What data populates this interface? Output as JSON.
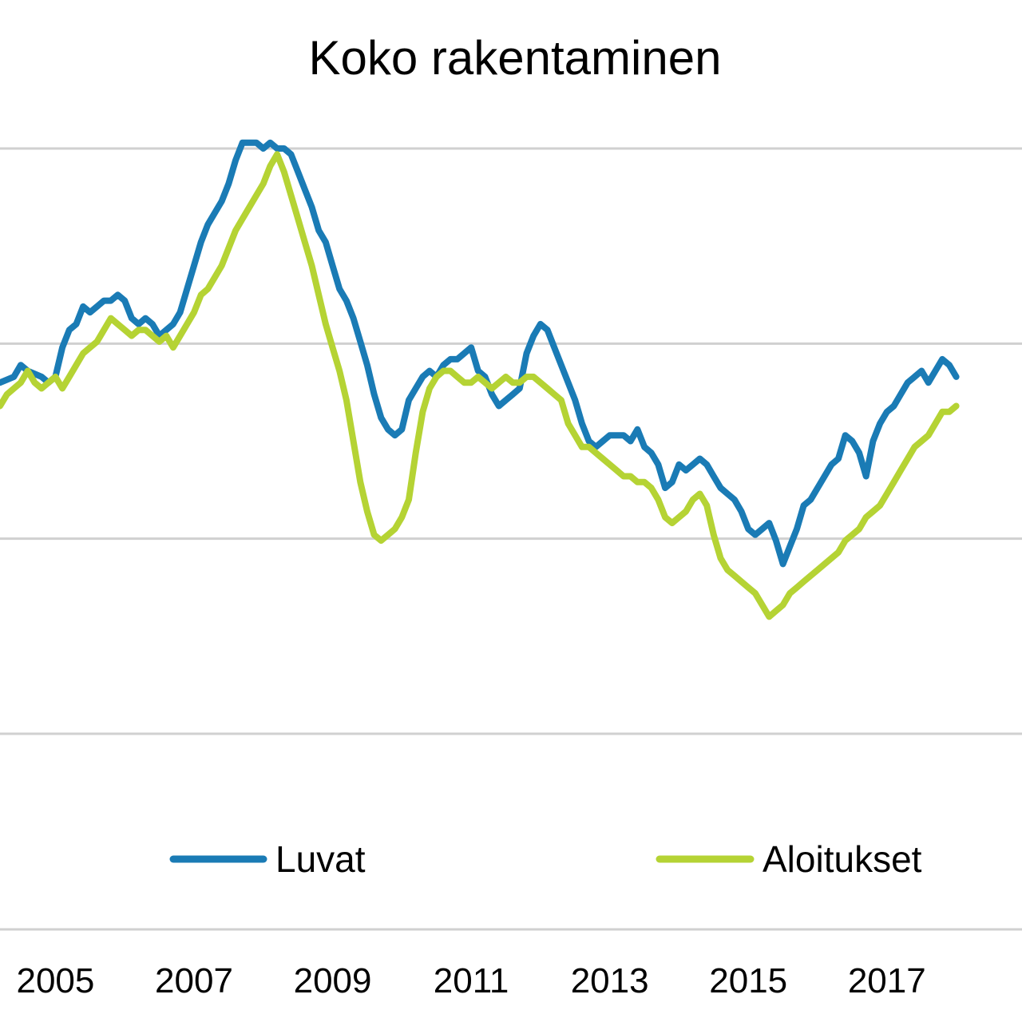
{
  "chart_data": {
    "type": "line",
    "title": "Koko rakentaminen",
    "xlabel": "",
    "ylabel": "",
    "x_tick_labels": [
      "2005",
      "2007",
      "2009",
      "2011",
      "2013",
      "2015",
      "2017"
    ],
    "x_tick_values": [
      2005,
      2007,
      2009,
      2011,
      2013,
      2015,
      2017
    ],
    "xlim": [
      2004.2,
      2018.95
    ],
    "ylim": [
      0,
      100
    ],
    "grid": true,
    "legend_position": "bottom",
    "series": [
      {
        "name": "Luvat",
        "color": "#1a7bb5",
        "points": [
          [
            2004.2,
            60
          ],
          [
            2004.4,
            61
          ],
          [
            2004.5,
            63
          ],
          [
            2004.6,
            62
          ],
          [
            2004.8,
            61
          ],
          [
            2004.9,
            60
          ],
          [
            2005.0,
            61
          ],
          [
            2005.1,
            66
          ],
          [
            2005.2,
            69
          ],
          [
            2005.3,
            70
          ],
          [
            2005.4,
            73
          ],
          [
            2005.5,
            72
          ],
          [
            2005.6,
            73
          ],
          [
            2005.7,
            74
          ],
          [
            2005.8,
            74
          ],
          [
            2005.9,
            75
          ],
          [
            2006.0,
            74
          ],
          [
            2006.1,
            71
          ],
          [
            2006.2,
            70
          ],
          [
            2006.3,
            71
          ],
          [
            2006.4,
            70
          ],
          [
            2006.5,
            68
          ],
          [
            2006.6,
            69
          ],
          [
            2006.7,
            70
          ],
          [
            2006.8,
            72
          ],
          [
            2006.9,
            76
          ],
          [
            2007.0,
            80
          ],
          [
            2007.1,
            84
          ],
          [
            2007.2,
            87
          ],
          [
            2007.3,
            89
          ],
          [
            2007.4,
            91
          ],
          [
            2007.5,
            94
          ],
          [
            2007.6,
            98
          ],
          [
            2007.7,
            101
          ],
          [
            2007.8,
            101
          ],
          [
            2007.9,
            101
          ],
          [
            2008.0,
            100
          ],
          [
            2008.1,
            101
          ],
          [
            2008.2,
            100
          ],
          [
            2008.3,
            100
          ],
          [
            2008.4,
            99
          ],
          [
            2008.5,
            96
          ],
          [
            2008.6,
            93
          ],
          [
            2008.7,
            90
          ],
          [
            2008.8,
            86
          ],
          [
            2008.9,
            84
          ],
          [
            2009.0,
            80
          ],
          [
            2009.1,
            76
          ],
          [
            2009.2,
            74
          ],
          [
            2009.3,
            71
          ],
          [
            2009.4,
            67
          ],
          [
            2009.5,
            63
          ],
          [
            2009.6,
            58
          ],
          [
            2009.7,
            54
          ],
          [
            2009.8,
            52
          ],
          [
            2009.9,
            51
          ],
          [
            2010.0,
            52
          ],
          [
            2010.1,
            57
          ],
          [
            2010.2,
            59
          ],
          [
            2010.3,
            61
          ],
          [
            2010.4,
            62
          ],
          [
            2010.5,
            61
          ],
          [
            2010.6,
            63
          ],
          [
            2010.7,
            64
          ],
          [
            2010.8,
            64
          ],
          [
            2010.9,
            65
          ],
          [
            2011.0,
            66
          ],
          [
            2011.1,
            62
          ],
          [
            2011.2,
            61
          ],
          [
            2011.3,
            58
          ],
          [
            2011.4,
            56
          ],
          [
            2011.5,
            57
          ],
          [
            2011.6,
            58
          ],
          [
            2011.7,
            59
          ],
          [
            2011.8,
            65
          ],
          [
            2011.9,
            68
          ],
          [
            2012.0,
            70
          ],
          [
            2012.1,
            69
          ],
          [
            2012.2,
            66
          ],
          [
            2012.3,
            63
          ],
          [
            2012.4,
            60
          ],
          [
            2012.5,
            57
          ],
          [
            2012.6,
            53
          ],
          [
            2012.7,
            50
          ],
          [
            2012.8,
            49
          ],
          [
            2012.9,
            50
          ],
          [
            2013.0,
            51
          ],
          [
            2013.1,
            51
          ],
          [
            2013.2,
            51
          ],
          [
            2013.3,
            50
          ],
          [
            2013.4,
            52
          ],
          [
            2013.5,
            49
          ],
          [
            2013.6,
            48
          ],
          [
            2013.7,
            46
          ],
          [
            2013.8,
            42
          ],
          [
            2013.9,
            43
          ],
          [
            2014.0,
            46
          ],
          [
            2014.1,
            45
          ],
          [
            2014.2,
            46
          ],
          [
            2014.3,
            47
          ],
          [
            2014.4,
            46
          ],
          [
            2014.5,
            44
          ],
          [
            2014.6,
            42
          ],
          [
            2014.7,
            41
          ],
          [
            2014.8,
            40
          ],
          [
            2014.9,
            38
          ],
          [
            2015.0,
            35
          ],
          [
            2015.1,
            34
          ],
          [
            2015.2,
            35
          ],
          [
            2015.3,
            36
          ],
          [
            2015.4,
            33
          ],
          [
            2015.5,
            29
          ],
          [
            2015.6,
            32
          ],
          [
            2015.7,
            35
          ],
          [
            2015.8,
            39
          ],
          [
            2015.9,
            40
          ],
          [
            2016.0,
            42
          ],
          [
            2016.1,
            44
          ],
          [
            2016.2,
            46
          ],
          [
            2016.3,
            47
          ],
          [
            2016.4,
            51
          ],
          [
            2016.5,
            50
          ],
          [
            2016.6,
            48
          ],
          [
            2016.7,
            44
          ],
          [
            2016.8,
            50
          ],
          [
            2016.9,
            53
          ],
          [
            2017.0,
            55
          ],
          [
            2017.1,
            56
          ],
          [
            2017.2,
            58
          ],
          [
            2017.3,
            60
          ],
          [
            2017.4,
            61
          ],
          [
            2017.5,
            62
          ],
          [
            2017.6,
            60
          ],
          [
            2017.7,
            62
          ],
          [
            2017.8,
            64
          ],
          [
            2017.9,
            63
          ],
          [
            2018.0,
            61
          ]
        ]
      },
      {
        "name": "Aloitukset",
        "color": "#b5d334",
        "points": [
          [
            2004.2,
            56
          ],
          [
            2004.3,
            58
          ],
          [
            2004.4,
            59
          ],
          [
            2004.5,
            60
          ],
          [
            2004.6,
            62
          ],
          [
            2004.7,
            60
          ],
          [
            2004.8,
            59
          ],
          [
            2004.9,
            60
          ],
          [
            2005.0,
            61
          ],
          [
            2005.1,
            59
          ],
          [
            2005.2,
            61
          ],
          [
            2005.3,
            63
          ],
          [
            2005.4,
            65
          ],
          [
            2005.5,
            66
          ],
          [
            2005.6,
            67
          ],
          [
            2005.7,
            69
          ],
          [
            2005.8,
            71
          ],
          [
            2005.9,
            70
          ],
          [
            2006.0,
            69
          ],
          [
            2006.1,
            68
          ],
          [
            2006.2,
            69
          ],
          [
            2006.3,
            69
          ],
          [
            2006.4,
            68
          ],
          [
            2006.5,
            67
          ],
          [
            2006.6,
            68
          ],
          [
            2006.7,
            66
          ],
          [
            2006.8,
            68
          ],
          [
            2006.9,
            70
          ],
          [
            2007.0,
            72
          ],
          [
            2007.1,
            75
          ],
          [
            2007.2,
            76
          ],
          [
            2007.3,
            78
          ],
          [
            2007.4,
            80
          ],
          [
            2007.5,
            83
          ],
          [
            2007.6,
            86
          ],
          [
            2007.7,
            88
          ],
          [
            2007.8,
            90
          ],
          [
            2007.9,
            92
          ],
          [
            2008.0,
            94
          ],
          [
            2008.1,
            97
          ],
          [
            2008.2,
            99
          ],
          [
            2008.3,
            96
          ],
          [
            2008.4,
            92
          ],
          [
            2008.5,
            88
          ],
          [
            2008.6,
            84
          ],
          [
            2008.7,
            80
          ],
          [
            2008.8,
            75
          ],
          [
            2008.9,
            70
          ],
          [
            2009.0,
            66
          ],
          [
            2009.1,
            62
          ],
          [
            2009.2,
            57
          ],
          [
            2009.3,
            50
          ],
          [
            2009.4,
            43
          ],
          [
            2009.5,
            38
          ],
          [
            2009.6,
            34
          ],
          [
            2009.7,
            33
          ],
          [
            2009.8,
            34
          ],
          [
            2009.9,
            35
          ],
          [
            2010.0,
            37
          ],
          [
            2010.1,
            40
          ],
          [
            2010.2,
            48
          ],
          [
            2010.3,
            55
          ],
          [
            2010.4,
            59
          ],
          [
            2010.5,
            61
          ],
          [
            2010.6,
            62
          ],
          [
            2010.7,
            62
          ],
          [
            2010.8,
            61
          ],
          [
            2010.9,
            60
          ],
          [
            2011.0,
            60
          ],
          [
            2011.1,
            61
          ],
          [
            2011.2,
            60
          ],
          [
            2011.3,
            59
          ],
          [
            2011.4,
            60
          ],
          [
            2011.5,
            61
          ],
          [
            2011.6,
            60
          ],
          [
            2011.7,
            60
          ],
          [
            2011.8,
            61
          ],
          [
            2011.9,
            61
          ],
          [
            2012.0,
            60
          ],
          [
            2012.1,
            59
          ],
          [
            2012.2,
            58
          ],
          [
            2012.3,
            57
          ],
          [
            2012.4,
            53
          ],
          [
            2012.5,
            51
          ],
          [
            2012.6,
            49
          ],
          [
            2012.7,
            49
          ],
          [
            2012.8,
            48
          ],
          [
            2012.9,
            47
          ],
          [
            2013.0,
            46
          ],
          [
            2013.1,
            45
          ],
          [
            2013.2,
            44
          ],
          [
            2013.3,
            44
          ],
          [
            2013.4,
            43
          ],
          [
            2013.5,
            43
          ],
          [
            2013.6,
            42
          ],
          [
            2013.7,
            40
          ],
          [
            2013.8,
            37
          ],
          [
            2013.9,
            36
          ],
          [
            2014.0,
            37
          ],
          [
            2014.1,
            38
          ],
          [
            2014.2,
            40
          ],
          [
            2014.3,
            41
          ],
          [
            2014.4,
            39
          ],
          [
            2014.5,
            34
          ],
          [
            2014.6,
            30
          ],
          [
            2014.7,
            28
          ],
          [
            2014.8,
            27
          ],
          [
            2014.9,
            26
          ],
          [
            2015.0,
            25
          ],
          [
            2015.1,
            24
          ],
          [
            2015.2,
            22
          ],
          [
            2015.3,
            20
          ],
          [
            2015.4,
            21
          ],
          [
            2015.5,
            22
          ],
          [
            2015.6,
            24
          ],
          [
            2015.7,
            25
          ],
          [
            2015.8,
            26
          ],
          [
            2015.9,
            27
          ],
          [
            2016.0,
            28
          ],
          [
            2016.1,
            29
          ],
          [
            2016.2,
            30
          ],
          [
            2016.3,
            31
          ],
          [
            2016.4,
            33
          ],
          [
            2016.5,
            34
          ],
          [
            2016.6,
            35
          ],
          [
            2016.7,
            37
          ],
          [
            2016.8,
            38
          ],
          [
            2016.9,
            39
          ],
          [
            2017.0,
            41
          ],
          [
            2017.1,
            43
          ],
          [
            2017.2,
            45
          ],
          [
            2017.3,
            47
          ],
          [
            2017.4,
            49
          ],
          [
            2017.5,
            50
          ],
          [
            2017.6,
            51
          ],
          [
            2017.7,
            53
          ],
          [
            2017.8,
            55
          ],
          [
            2017.9,
            55
          ],
          [
            2018.0,
            56
          ]
        ]
      }
    ]
  }
}
